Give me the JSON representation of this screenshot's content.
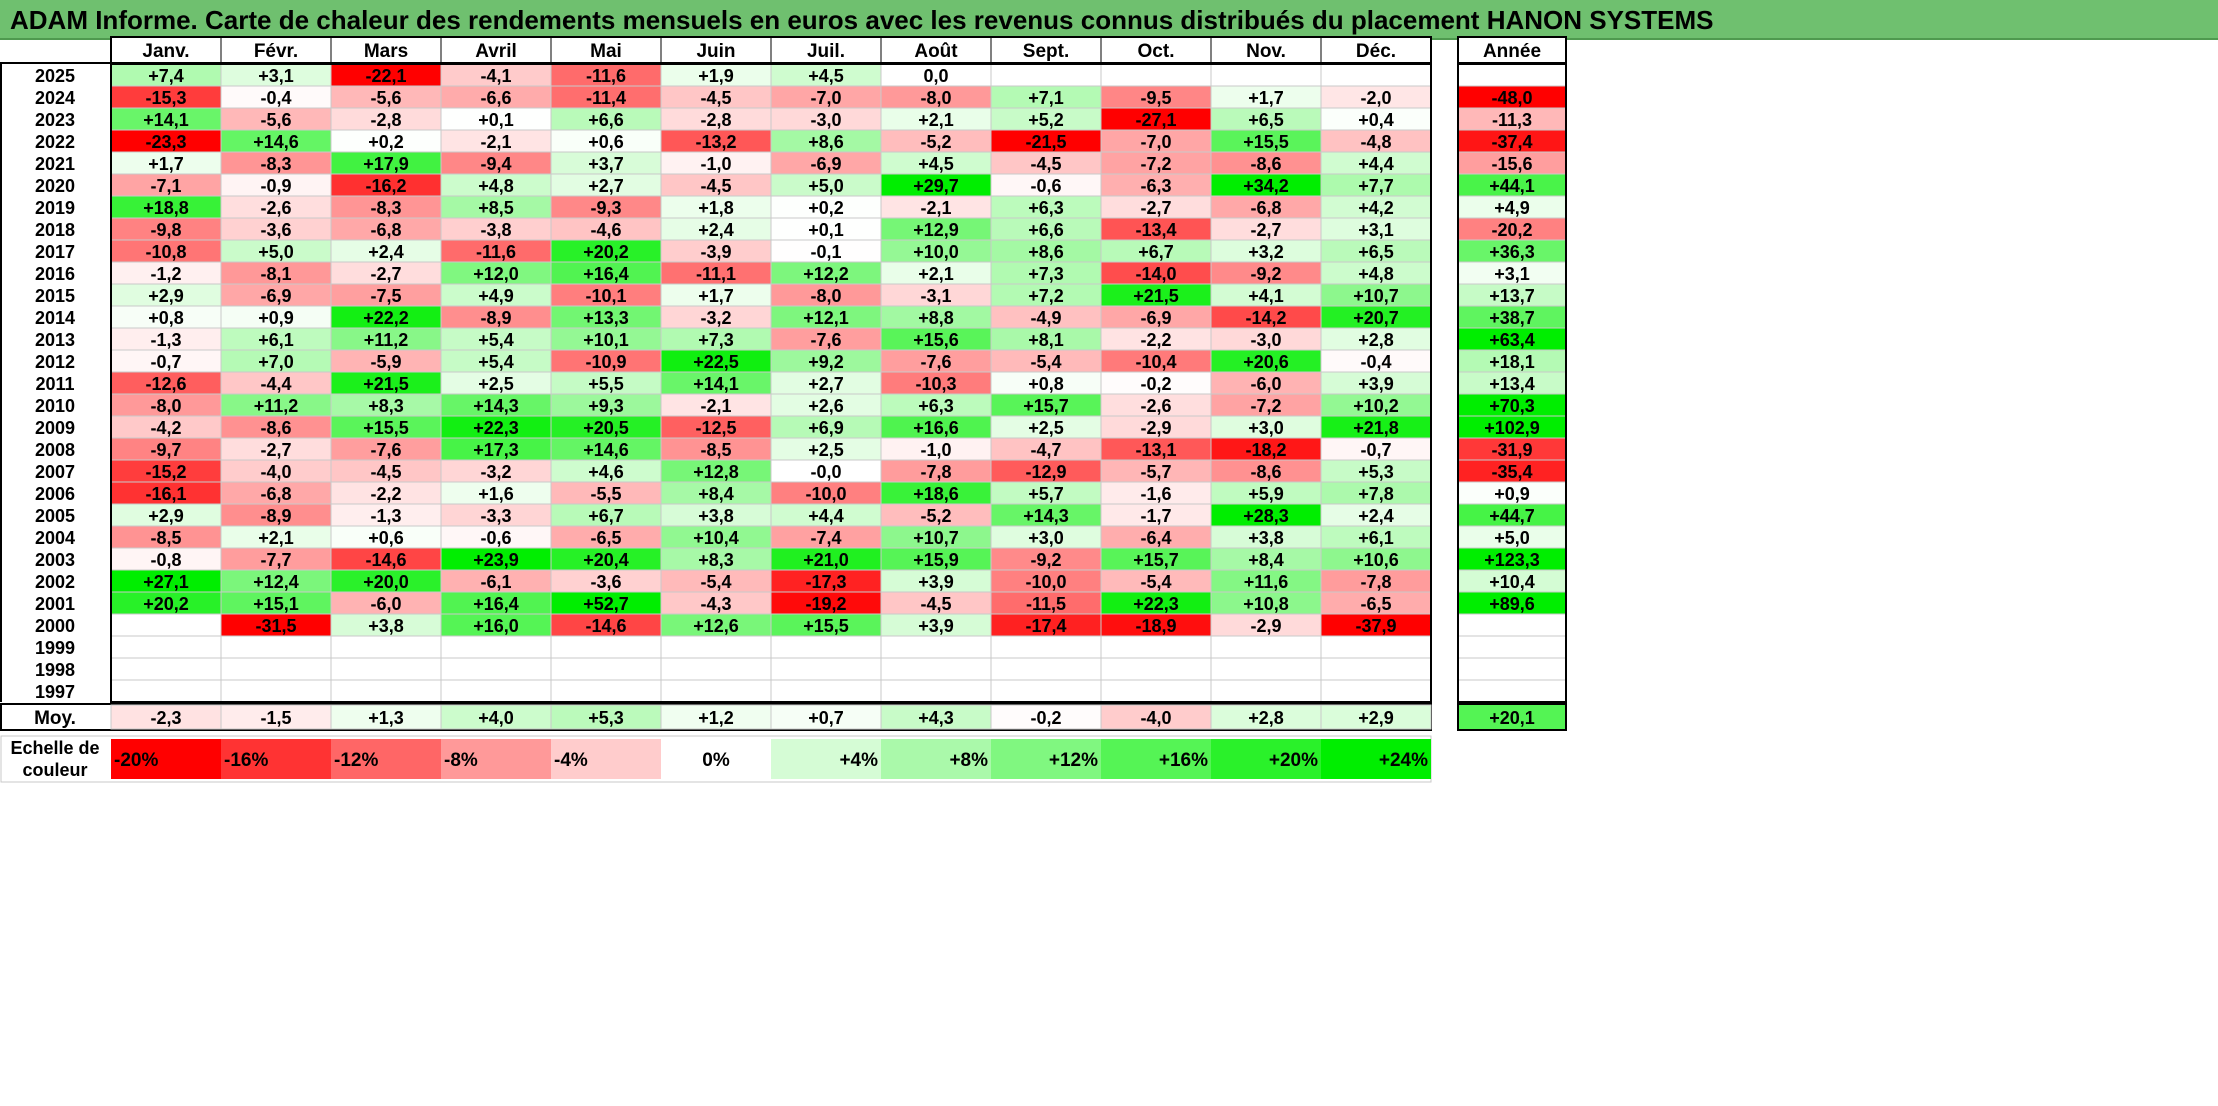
{
  "title": "ADAM Informe. Carte de chaleur des rendements mensuels en euros avec les revenus connus distribués du placement HANON SYSTEMS",
  "chart_data": {
    "type": "heatmap",
    "months": [
      "Janv.",
      "Févr.",
      "Mars",
      "Avril",
      "Mai",
      "Juin",
      "Juil.",
      "Août",
      "Sept.",
      "Oct.",
      "Nov.",
      "Déc."
    ],
    "year_header": "Année",
    "rows": [
      {
        "year": "2025",
        "values": [
          "+7,4",
          "+3,1",
          "-22,1",
          "-4,1",
          "-11,6",
          "+1,9",
          "+4,5",
          "0,0",
          "",
          "",
          "",
          ""
        ],
        "annual": ""
      },
      {
        "year": "2024",
        "values": [
          "-15,3",
          "-0,4",
          "-5,6",
          "-6,6",
          "-11,4",
          "-4,5",
          "-7,0",
          "-8,0",
          "+7,1",
          "-9,5",
          "+1,7",
          "-2,0"
        ],
        "annual": "-48,0"
      },
      {
        "year": "2023",
        "values": [
          "+14,1",
          "-5,6",
          "-2,8",
          "+0,1",
          "+6,6",
          "-2,8",
          "-3,0",
          "+2,1",
          "+5,2",
          "-27,1",
          "+6,5",
          "+0,4"
        ],
        "annual": "-11,3"
      },
      {
        "year": "2022",
        "values": [
          "-23,3",
          "+14,6",
          "+0,2",
          "-2,1",
          "+0,6",
          "-13,2",
          "+8,6",
          "-5,2",
          "-21,5",
          "-7,0",
          "+15,5",
          "-4,8"
        ],
        "annual": "-37,4"
      },
      {
        "year": "2021",
        "values": [
          "+1,7",
          "-8,3",
          "+17,9",
          "-9,4",
          "+3,7",
          "-1,0",
          "-6,9",
          "+4,5",
          "-4,5",
          "-7,2",
          "-8,6",
          "+4,4"
        ],
        "annual": "-15,6"
      },
      {
        "year": "2020",
        "values": [
          "-7,1",
          "-0,9",
          "-16,2",
          "+4,8",
          "+2,7",
          "-4,5",
          "+5,0",
          "+29,7",
          "-0,6",
          "-6,3",
          "+34,2",
          "+7,7"
        ],
        "annual": "+44,1"
      },
      {
        "year": "2019",
        "values": [
          "+18,8",
          "-2,6",
          "-8,3",
          "+8,5",
          "-9,3",
          "+1,8",
          "+0,2",
          "-2,1",
          "+6,3",
          "-2,7",
          "-6,8",
          "+4,2"
        ],
        "annual": "+4,9"
      },
      {
        "year": "2018",
        "values": [
          "-9,8",
          "-3,6",
          "-6,8",
          "-3,8",
          "-4,6",
          "+2,4",
          "+0,1",
          "+12,9",
          "+6,6",
          "-13,4",
          "-2,7",
          "+3,1"
        ],
        "annual": "-20,2"
      },
      {
        "year": "2017",
        "values": [
          "-10,8",
          "+5,0",
          "+2,4",
          "-11,6",
          "+20,2",
          "-3,9",
          "-0,1",
          "+10,0",
          "+8,6",
          "+6,7",
          "+3,2",
          "+6,5"
        ],
        "annual": "+36,3"
      },
      {
        "year": "2016",
        "values": [
          "-1,2",
          "-8,1",
          "-2,7",
          "+12,0",
          "+16,4",
          "-11,1",
          "+12,2",
          "+2,1",
          "+7,3",
          "-14,0",
          "-9,2",
          "+4,8"
        ],
        "annual": "+3,1"
      },
      {
        "year": "2015",
        "values": [
          "+2,9",
          "-6,9",
          "-7,5",
          "+4,9",
          "-10,1",
          "+1,7",
          "-8,0",
          "-3,1",
          "+7,2",
          "+21,5",
          "+4,1",
          "+10,7"
        ],
        "annual": "+13,7"
      },
      {
        "year": "2014",
        "values": [
          "+0,8",
          "+0,9",
          "+22,2",
          "-8,9",
          "+13,3",
          "-3,2",
          "+12,1",
          "+8,8",
          "-4,9",
          "-6,9",
          "-14,2",
          "+20,7"
        ],
        "annual": "+38,7"
      },
      {
        "year": "2013",
        "values": [
          "-1,3",
          "+6,1",
          "+11,2",
          "+5,4",
          "+10,1",
          "+7,3",
          "-7,6",
          "+15,6",
          "+8,1",
          "-2,2",
          "-3,0",
          "+2,8"
        ],
        "annual": "+63,4"
      },
      {
        "year": "2012",
        "values": [
          "-0,7",
          "+7,0",
          "-5,9",
          "+5,4",
          "-10,9",
          "+22,5",
          "+9,2",
          "-7,6",
          "-5,4",
          "-10,4",
          "+20,6",
          "-0,4"
        ],
        "annual": "+18,1"
      },
      {
        "year": "2011",
        "values": [
          "-12,6",
          "-4,4",
          "+21,5",
          "+2,5",
          "+5,5",
          "+14,1",
          "+2,7",
          "-10,3",
          "+0,8",
          "-0,2",
          "-6,0",
          "+3,9"
        ],
        "annual": "+13,4"
      },
      {
        "year": "2010",
        "values": [
          "-8,0",
          "+11,2",
          "+8,3",
          "+14,3",
          "+9,3",
          "-2,1",
          "+2,6",
          "+6,3",
          "+15,7",
          "-2,6",
          "-7,2",
          "+10,2"
        ],
        "annual": "+70,3"
      },
      {
        "year": "2009",
        "values": [
          "-4,2",
          "-8,6",
          "+15,5",
          "+22,3",
          "+20,5",
          "-12,5",
          "+6,9",
          "+16,6",
          "+2,5",
          "-2,9",
          "+3,0",
          "+21,8"
        ],
        "annual": "+102,9"
      },
      {
        "year": "2008",
        "values": [
          "-9,7",
          "-2,7",
          "-7,6",
          "+17,3",
          "+14,6",
          "-8,5",
          "+2,5",
          "-1,0",
          "-4,7",
          "-13,1",
          "-18,2",
          "-0,7"
        ],
        "annual": "-31,9"
      },
      {
        "year": "2007",
        "values": [
          "-15,2",
          "-4,0",
          "-4,5",
          "-3,2",
          "+4,6",
          "+12,8",
          "-0,0",
          "-7,8",
          "-12,9",
          "-5,7",
          "-8,6",
          "+5,3"
        ],
        "annual": "-35,4"
      },
      {
        "year": "2006",
        "values": [
          "-16,1",
          "-6,8",
          "-2,2",
          "+1,6",
          "-5,5",
          "+8,4",
          "-10,0",
          "+18,6",
          "+5,7",
          "-1,6",
          "+5,9",
          "+7,8"
        ],
        "annual": "+0,9"
      },
      {
        "year": "2005",
        "values": [
          "+2,9",
          "-8,9",
          "-1,3",
          "-3,3",
          "+6,7",
          "+3,8",
          "+4,4",
          "-5,2",
          "+14,3",
          "-1,7",
          "+28,3",
          "+2,4"
        ],
        "annual": "+44,7"
      },
      {
        "year": "2004",
        "values": [
          "-8,5",
          "+2,1",
          "+0,6",
          "-0,6",
          "-6,5",
          "+10,4",
          "-7,4",
          "+10,7",
          "+3,0",
          "-6,4",
          "+3,8",
          "+6,1"
        ],
        "annual": "+5,0"
      },
      {
        "year": "2003",
        "values": [
          "-0,8",
          "-7,7",
          "-14,6",
          "+23,9",
          "+20,4",
          "+8,3",
          "+21,0",
          "+15,9",
          "-9,2",
          "+15,7",
          "+8,4",
          "+10,6"
        ],
        "annual": "+123,3"
      },
      {
        "year": "2002",
        "values": [
          "+27,1",
          "+12,4",
          "+20,0",
          "-6,1",
          "-3,6",
          "-5,4",
          "-17,3",
          "+3,9",
          "-10,0",
          "-5,4",
          "+11,6",
          "-7,8"
        ],
        "annual": "+10,4"
      },
      {
        "year": "2001",
        "values": [
          "+20,2",
          "+15,1",
          "-6,0",
          "+16,4",
          "+52,7",
          "-4,3",
          "-19,2",
          "-4,5",
          "-11,5",
          "+22,3",
          "+10,8",
          "-6,5"
        ],
        "annual": "+89,6"
      },
      {
        "year": "2000",
        "values": [
          "",
          "-31,5",
          "+3,8",
          "+16,0",
          "-14,6",
          "+12,6",
          "+15,5",
          "+3,9",
          "-17,4",
          "-18,9",
          "-2,9",
          "-37,9"
        ],
        "annual": ""
      },
      {
        "year": "1999",
        "values": [
          "",
          "",
          "",
          "",
          "",
          "",
          "",
          "",
          "",
          "",
          "",
          ""
        ],
        "annual": ""
      },
      {
        "year": "1998",
        "values": [
          "",
          "",
          "",
          "",
          "",
          "",
          "",
          "",
          "",
          "",
          "",
          ""
        ],
        "annual": ""
      },
      {
        "year": "1997",
        "values": [
          "",
          "",
          "",
          "",
          "",
          "",
          "",
          "",
          "",
          "",
          "",
          ""
        ],
        "annual": ""
      }
    ],
    "average": {
      "label": "Moy.",
      "values": [
        "-2,3",
        "-1,5",
        "+1,3",
        "+4,0",
        "+5,3",
        "+1,2",
        "+0,7",
        "+4,3",
        "-0,2",
        "-4,0",
        "+2,8",
        "+2,9"
      ],
      "annual": "+20,1"
    },
    "scale": {
      "label_line1": "Echelle de",
      "label_line2": "couleur",
      "steps": [
        "-20%",
        "-16%",
        "-12%",
        "-8%",
        "-4%",
        "0%",
        "+4%",
        "+8%",
        "+12%",
        "+16%",
        "+20%",
        "+24%"
      ]
    },
    "colors": {
      "negative": "#ff0000",
      "zero": "#ffffff",
      "positive": "#00ee00",
      "title_bg": "#6fc06f"
    }
  }
}
